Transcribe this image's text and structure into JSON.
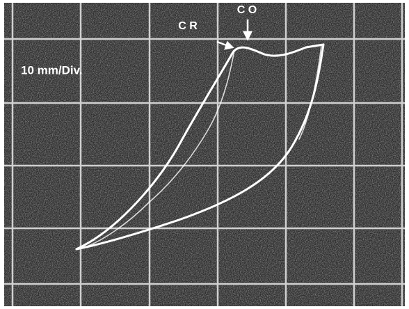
{
  "labels": {
    "co": "C O",
    "cr": "C R",
    "scale": "10 mm/Div."
  }
}
